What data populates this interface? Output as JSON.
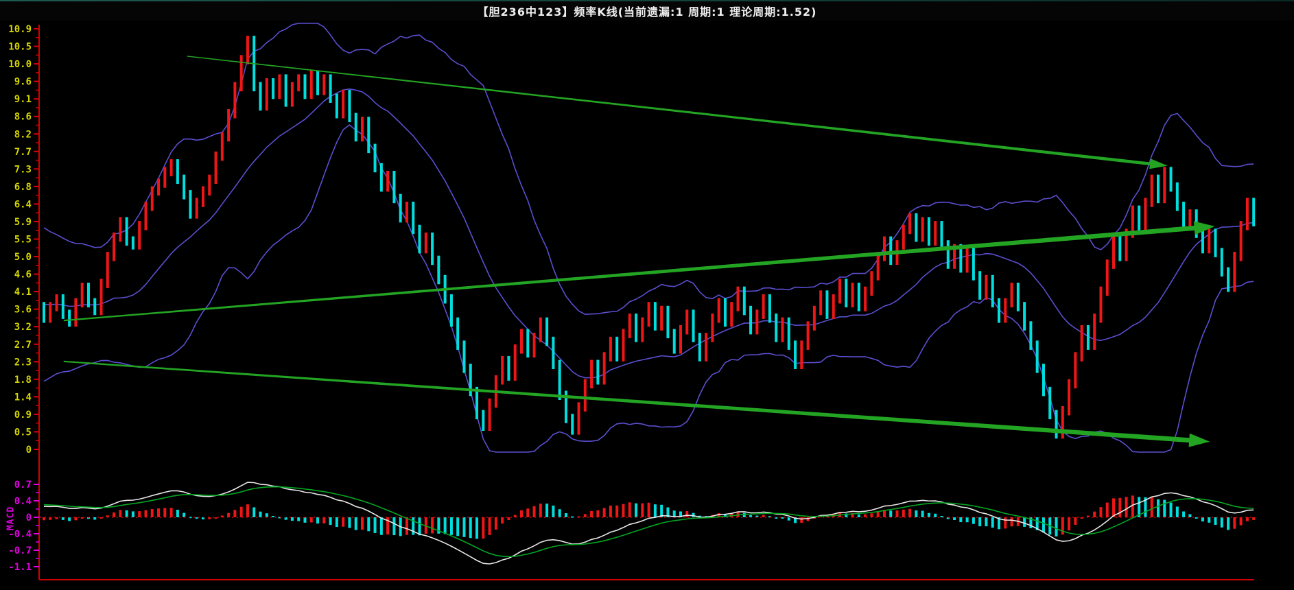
{
  "header": {
    "title": "【胆236中123】频率K线(当前遗漏:1  周期:1  理论周期:1.52)"
  },
  "colors": {
    "background": "#000000",
    "axis_line": "#d40000",
    "price_tick_label": "#d6d600",
    "macd_tick_label": "#e000e0",
    "candle_up": "#ee1616",
    "candle_down": "#00dede",
    "band_line": "#5a4fd0",
    "dif_line": "#e8e8e8",
    "dea_line": "#00a822",
    "arrow_green": "#23a523",
    "zero_line": "#cc0000",
    "title_text": "#f0f0f0"
  },
  "chart_data": {
    "type": "candlestick",
    "title": "【胆236中123】频率K线(当前遗漏:1  周期:1  理论周期:1.52)",
    "main_panel": {
      "ylim": [
        0,
        10.9
      ],
      "tick_labels": [
        "10.9",
        "10.5",
        "10.0",
        "9.6",
        "9.1",
        "8.6",
        "8.2",
        "7.7",
        "7.3",
        "6.8",
        "6.4",
        "5.9",
        "5.5",
        "5.0",
        "4.6",
        "4.1",
        "3.6",
        "3.2",
        "2.7",
        "2.3",
        "1.8",
        "1.4",
        "0.9",
        "0.5",
        "0"
      ],
      "closes": [
        3.4,
        3.7,
        3.9,
        3.5,
        3.3,
        3.8,
        4.2,
        3.8,
        3.6,
        4.3,
        5.0,
        5.5,
        5.9,
        5.4,
        5.3,
        5.8,
        6.3,
        6.7,
        6.9,
        7.2,
        7.4,
        7.0,
        6.6,
        6.1,
        6.4,
        6.7,
        7.0,
        7.6,
        8.1,
        8.7,
        9.4,
        10.1,
        10.6,
        9.4,
        8.9,
        9.5,
        9.2,
        9.6,
        9.0,
        9.4,
        9.6,
        9.2,
        9.7,
        9.3,
        9.6,
        9.1,
        8.7,
        9.2,
        8.6,
        8.1,
        8.5,
        7.8,
        7.3,
        6.8,
        7.1,
        6.5,
        6.0,
        6.3,
        5.7,
        5.2,
        5.5,
        4.9,
        4.4,
        3.9,
        3.3,
        2.7,
        2.1,
        1.5,
        0.9,
        0.6,
        1.2,
        1.8,
        2.3,
        1.9,
        2.6,
        3.0,
        2.5,
        2.9,
        3.3,
        2.8,
        2.2,
        1.4,
        0.8,
        0.5,
        1.1,
        1.7,
        2.2,
        1.8,
        2.4,
        2.8,
        2.4,
        3.0,
        3.4,
        2.9,
        3.3,
        3.7,
        3.2,
        3.6,
        3.0,
        2.6,
        3.1,
        3.5,
        2.9,
        2.4,
        2.9,
        3.4,
        3.8,
        3.3,
        3.7,
        4.1,
        3.6,
        3.1,
        3.5,
        3.9,
        3.4,
        2.9,
        3.3,
        2.7,
        2.2,
        2.7,
        3.2,
        3.6,
        4.0,
        3.5,
        3.9,
        4.3,
        3.8,
        4.2,
        3.7,
        4.1,
        4.5,
        5.0,
        5.4,
        4.9,
        5.3,
        5.7,
        6.0,
        5.5,
        5.9,
        5.4,
        5.8,
        5.3,
        4.8,
        5.2,
        4.7,
        5.1,
        4.5,
        4.0,
        4.4,
        3.8,
        3.4,
        3.8,
        4.2,
        3.7,
        3.2,
        2.7,
        2.1,
        1.5,
        0.9,
        0.4,
        1.0,
        1.7,
        2.4,
        3.1,
        2.7,
        3.4,
        4.1,
        4.8,
        5.5,
        5.0,
        5.6,
        6.2,
        5.8,
        6.4,
        7.0,
        6.5,
        7.2,
        6.8,
        6.3,
        5.8,
        6.1,
        5.6,
        5.2,
        5.6,
        5.1,
        4.6,
        4.2,
        5.0,
        5.8,
        6.4,
        5.9
      ],
      "bollinger": {
        "period": 20,
        "mult": 2.0,
        "warmup_seed": [
          5.8,
          5.0,
          4.2,
          3.6,
          3.0,
          2.6,
          2.9,
          3.3
        ]
      },
      "arrows": [
        {
          "style": "thin",
          "from": [
            22.5,
            10.19
          ],
          "to": [
            176.5,
            7.35
          ]
        },
        {
          "style": "thick",
          "from": [
            3.1,
            3.34
          ],
          "to": [
            183.9,
            5.78
          ]
        },
        {
          "style": "thick",
          "from": [
            3.1,
            2.28
          ],
          "to": [
            183.1,
            0.2
          ]
        }
      ]
    },
    "sub_panel": {
      "type": "macd",
      "label": "MACD",
      "params": [
        12,
        26,
        9
      ],
      "tick_labels": [
        "0.7",
        "0.4",
        "0",
        "-0.4",
        "-0.7",
        "-1.1"
      ],
      "ylim": [
        -1.26,
        0.84
      ]
    }
  }
}
